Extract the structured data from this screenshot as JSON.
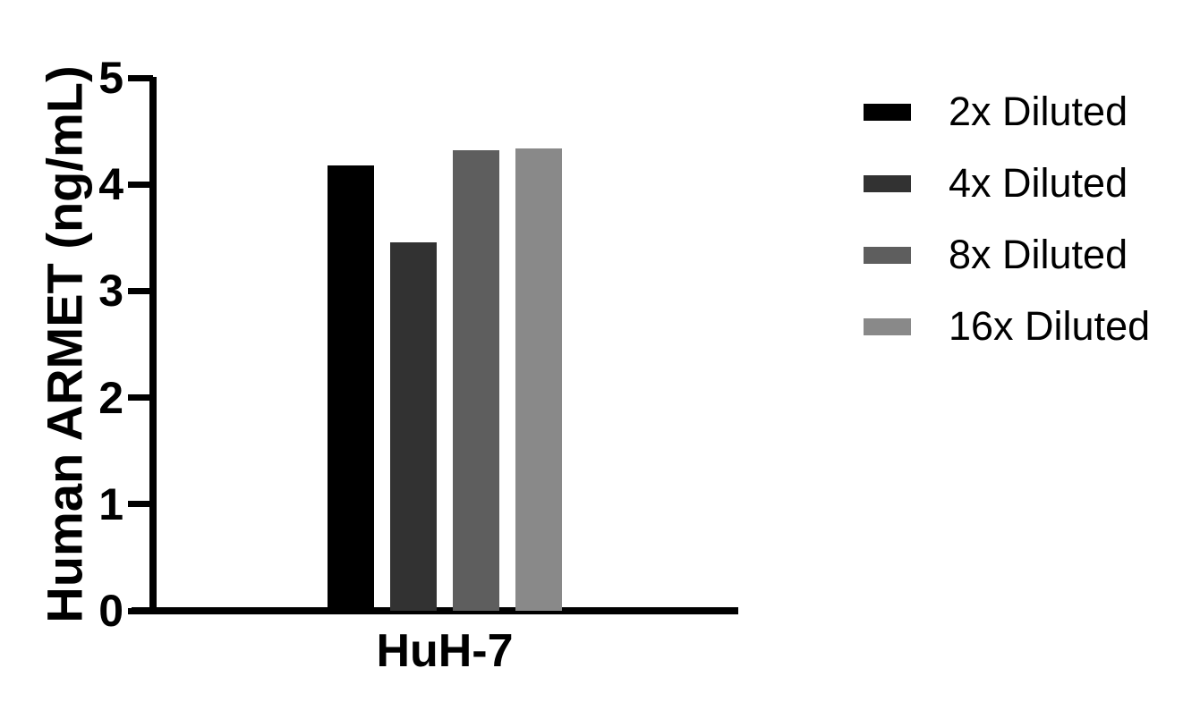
{
  "chart_data": {
    "type": "bar",
    "title": "",
    "categories": [
      "HuH-7"
    ],
    "series": [
      {
        "name": "2x Diluted",
        "color": "#000000",
        "values": [
          4.18
        ]
      },
      {
        "name": "4x Diluted",
        "color": "#323232",
        "values": [
          3.46
        ]
      },
      {
        "name": "8x Diluted",
        "color": "#5e5e5e",
        "values": [
          4.32
        ]
      },
      {
        "name": "16x Diluted",
        "color": "#898989",
        "values": [
          4.34
        ]
      }
    ],
    "xlabel": "",
    "ylabel": "Human ARMET (ng/mL)",
    "ylim": [
      0,
      5
    ],
    "yticks": [
      0,
      1,
      2,
      3,
      4,
      5
    ],
    "grid": false,
    "legend_position": "right",
    "axis_color": "#000000",
    "background_color": "#ffffff"
  }
}
